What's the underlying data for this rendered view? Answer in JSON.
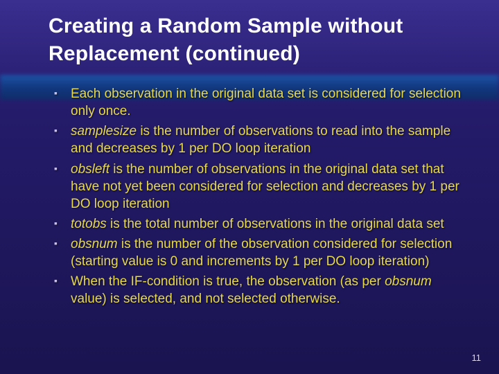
{
  "slide": {
    "title_line1": "Creating a Random Sample without",
    "title_line2": "Replacement (continued)",
    "page_number": "11",
    "bullets": [
      {
        "text_parts": [
          {
            "t": "Each observation in the original data set is considered for selection only once.",
            "italic": false
          }
        ]
      },
      {
        "text_parts": [
          {
            "t": "samplesize",
            "italic": true
          },
          {
            "t": " is the number of observations to read into the sample and decreases by 1 per DO loop iteration",
            "italic": false
          }
        ]
      },
      {
        "text_parts": [
          {
            "t": "obsleft",
            "italic": true
          },
          {
            "t": " is the number of observations in the original data set that have not yet been considered for selection and decreases by 1 per DO loop iteration",
            "italic": false
          }
        ]
      },
      {
        "text_parts": [
          {
            "t": "totobs",
            "italic": true
          },
          {
            "t": " is the total number of observations in the original data set",
            "italic": false
          }
        ]
      },
      {
        "text_parts": [
          {
            "t": "obsnum",
            "italic": true
          },
          {
            "t": " is the number of the observation considered for selection (starting value is 0 and increments by 1 per DO loop iteration)",
            "italic": false
          }
        ]
      },
      {
        "text_parts": [
          {
            "t": "When the IF-condition is true, the observation (as per ",
            "italic": false
          },
          {
            "t": "obsnum",
            "italic": true
          },
          {
            "t": " value) is selected, and not selected otherwise.",
            "italic": false
          }
        ]
      }
    ],
    "colors": {
      "background_top": "#3a2e8f",
      "background_mid": "#241b6a",
      "background_bottom": "#1a1450",
      "accent_bar": "#0f3d82",
      "title_color": "#ffffff",
      "bullet_text_color": "#e7d94a",
      "bullet_marker_color": "#c9c0e8",
      "page_num_color": "#d8d2f0"
    },
    "typography": {
      "title_fontsize_pt": 30,
      "title_weight": 700,
      "body_fontsize_pt": 19,
      "body_lineheight": 1.32,
      "page_num_fontsize_pt": 13
    }
  }
}
